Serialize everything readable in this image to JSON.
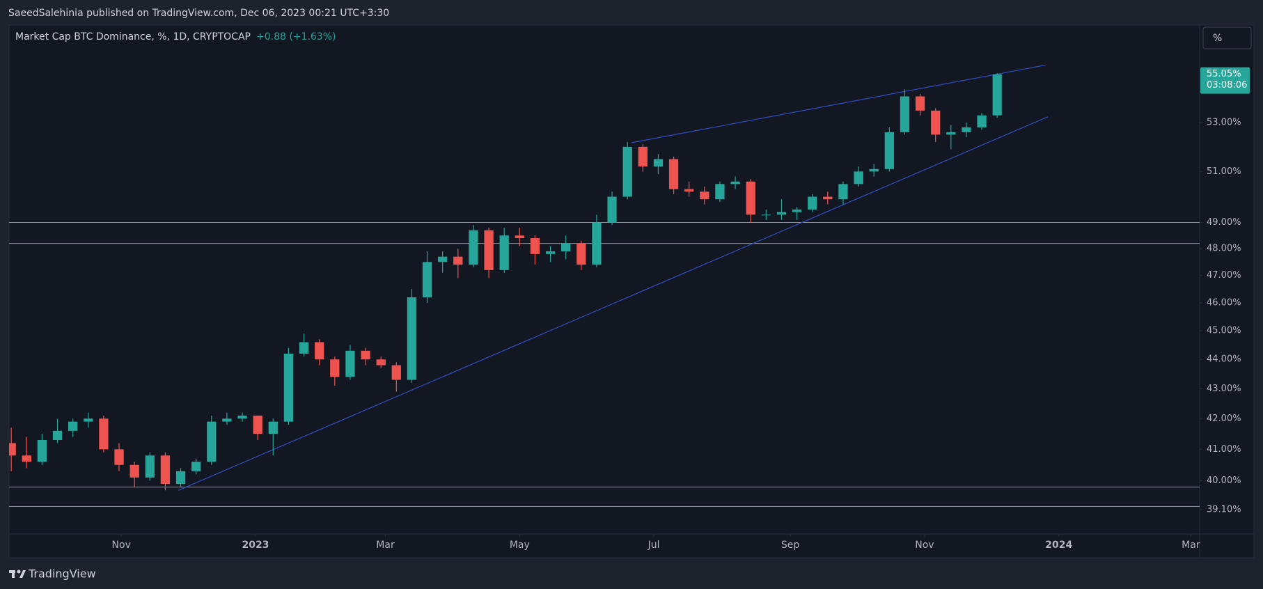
{
  "header": {
    "published_by": "SaeedSalehinia published on TradingView.com, Dec 06, 2023 00:21 UTC+3:30",
    "brand": "TradingView"
  },
  "chart_data": {
    "type": "candlestick",
    "title": "Market Cap BTC Dominance, %, 1D, CRYPTOCAP",
    "change": "+0.88 (+1.63%)",
    "scale_button": "%",
    "last_price_label": "55.05%",
    "countdown": "03:08:06",
    "up_color": "#26a69a",
    "down_color": "#ef5350",
    "log_scale": true,
    "xlim": [
      "2022-09-11",
      "2024-03-05"
    ],
    "ylim": [
      38.36,
      57.22
    ],
    "xticks": [
      {
        "value": "2022-11-01",
        "label": "Nov"
      },
      {
        "value": "2023-01-01",
        "label": "2023"
      },
      {
        "value": "2023-03-01",
        "label": "Mar"
      },
      {
        "value": "2023-05-01",
        "label": "May"
      },
      {
        "value": "2023-07-01",
        "label": "Jul"
      },
      {
        "value": "2023-09-01",
        "label": "Sep"
      },
      {
        "value": "2023-11-01",
        "label": "Nov"
      },
      {
        "value": "2024-01-01",
        "label": "2024"
      },
      {
        "value": "2024-03-01",
        "label": "Mar"
      }
    ],
    "yticks": [
      {
        "value": 39.1,
        "label": "39.10%"
      },
      {
        "value": 40,
        "label": "40.00%"
      },
      {
        "value": 41,
        "label": "41.00%"
      },
      {
        "value": 42,
        "label": "42.00%"
      },
      {
        "value": 43,
        "label": "43.00%"
      },
      {
        "value": 44,
        "label": "44.00%"
      },
      {
        "value": 45,
        "label": "45.00%"
      },
      {
        "value": 46,
        "label": "46.00%"
      },
      {
        "value": 47,
        "label": "47.00%"
      },
      {
        "value": 48,
        "label": "48.00%"
      },
      {
        "value": 49,
        "label": "49.00%"
      },
      {
        "value": 51,
        "label": "51.00%"
      },
      {
        "value": 53,
        "label": "53.00%"
      }
    ],
    "hlines": [
      49.0,
      48.2,
      39.8,
      39.2
    ],
    "trendlines": [
      {
        "x": [
          "2023-06-21",
          "2023-12-26"
        ],
        "y": [
          52.17,
          55.45
        ]
      },
      {
        "x": [
          "2022-11-27",
          "2023-12-27"
        ],
        "y": [
          39.7,
          53.24
        ]
      }
    ],
    "x": [
      "2022-09-12",
      "2022-09-19",
      "2022-09-26",
      "2022-10-03",
      "2022-10-10",
      "2022-10-17",
      "2022-10-24",
      "2022-10-31",
      "2022-11-07",
      "2022-11-14",
      "2022-11-21",
      "2022-11-28",
      "2022-12-05",
      "2022-12-12",
      "2022-12-19",
      "2022-12-26",
      "2023-01-02",
      "2023-01-09",
      "2023-01-16",
      "2023-01-23",
      "2023-01-30",
      "2023-02-06",
      "2023-02-13",
      "2023-02-20",
      "2023-02-27",
      "2023-03-06",
      "2023-03-13",
      "2023-03-20",
      "2023-03-27",
      "2023-04-03",
      "2023-04-10",
      "2023-04-17",
      "2023-04-24",
      "2023-05-01",
      "2023-05-08",
      "2023-05-15",
      "2023-05-22",
      "2023-05-29",
      "2023-06-05",
      "2023-06-12",
      "2023-06-19",
      "2023-06-26",
      "2023-07-03",
      "2023-07-10",
      "2023-07-17",
      "2023-07-24",
      "2023-07-31",
      "2023-08-07",
      "2023-08-14",
      "2023-08-21",
      "2023-08-28",
      "2023-09-04",
      "2023-09-11",
      "2023-09-18",
      "2023-09-25",
      "2023-10-02",
      "2023-10-09",
      "2023-10-16",
      "2023-10-23",
      "2023-10-30",
      "2023-11-06",
      "2023-11-13",
      "2023-11-20",
      "2023-11-27",
      "2023-12-04"
    ],
    "open": [
      41.2,
      40.8,
      40.6,
      41.3,
      41.6,
      41.9,
      42.0,
      41.0,
      40.5,
      40.1,
      40.8,
      39.9,
      40.3,
      40.6,
      41.9,
      42.0,
      42.1,
      41.5,
      41.9,
      44.2,
      44.6,
      44.0,
      43.4,
      44.3,
      44.0,
      43.8,
      43.3,
      46.2,
      47.5,
      47.7,
      47.4,
      48.7,
      47.2,
      48.5,
      48.4,
      47.8,
      47.9,
      48.2,
      47.4,
      49.0,
      50.0,
      52.0,
      51.2,
      51.5,
      50.3,
      50.2,
      49.9,
      50.5,
      50.6,
      49.3,
      49.3,
      49.4,
      49.5,
      50.0,
      49.9,
      50.5,
      51.0,
      51.1,
      52.6,
      54.1,
      53.5,
      52.5,
      52.6,
      52.8,
      53.3
    ],
    "high": [
      41.7,
      41.4,
      41.5,
      42.0,
      42.0,
      42.2,
      42.1,
      41.2,
      40.6,
      40.9,
      40.9,
      40.4,
      40.7,
      42.1,
      42.2,
      42.2,
      42.1,
      42.0,
      44.4,
      44.9,
      44.7,
      44.1,
      44.5,
      44.4,
      44.1,
      43.9,
      46.5,
      47.9,
      47.9,
      48.0,
      48.9,
      48.8,
      48.8,
      48.8,
      48.5,
      48.1,
      48.5,
      48.3,
      49.3,
      50.2,
      52.2,
      52.1,
      51.7,
      51.6,
      50.6,
      50.4,
      50.6,
      50.8,
      50.7,
      49.5,
      49.9,
      49.6,
      50.1,
      50.2,
      50.6,
      51.2,
      51.3,
      52.8,
      54.4,
      54.2,
      53.6,
      52.9,
      53.0,
      53.4,
      55.1
    ],
    "low": [
      40.3,
      40.4,
      40.5,
      41.2,
      41.4,
      41.7,
      40.9,
      40.3,
      39.8,
      40.0,
      39.7,
      39.8,
      40.2,
      40.5,
      41.8,
      41.9,
      41.3,
      40.8,
      41.8,
      44.1,
      43.8,
      43.1,
      43.3,
      43.8,
      43.7,
      42.9,
      43.2,
      46.0,
      47.1,
      46.9,
      47.3,
      46.9,
      47.1,
      48.1,
      47.4,
      47.5,
      47.6,
      47.2,
      47.3,
      48.9,
      49.9,
      51.0,
      50.9,
      50.1,
      50.0,
      49.7,
      49.8,
      50.3,
      49.0,
      49.1,
      49.1,
      49.1,
      49.4,
      49.7,
      49.7,
      50.4,
      50.8,
      51.0,
      52.5,
      53.3,
      52.2,
      51.9,
      52.4,
      52.7,
      53.2
    ],
    "close": [
      40.8,
      40.6,
      41.3,
      41.6,
      41.9,
      42.0,
      41.0,
      40.5,
      40.1,
      40.8,
      39.9,
      40.3,
      40.6,
      41.9,
      42.0,
      42.1,
      41.5,
      41.9,
      44.2,
      44.6,
      44.0,
      43.4,
      44.3,
      44.0,
      43.8,
      43.3,
      46.2,
      47.5,
      47.7,
      47.4,
      48.7,
      47.2,
      48.5,
      48.4,
      47.8,
      47.9,
      48.2,
      47.4,
      49.0,
      50.0,
      52.0,
      51.2,
      51.5,
      50.3,
      50.2,
      49.9,
      50.5,
      50.6,
      49.3,
      49.3,
      49.4,
      49.5,
      50.0,
      49.9,
      50.5,
      51.0,
      51.1,
      52.6,
      54.1,
      53.5,
      52.5,
      52.6,
      52.8,
      53.3,
      55.05
    ]
  }
}
